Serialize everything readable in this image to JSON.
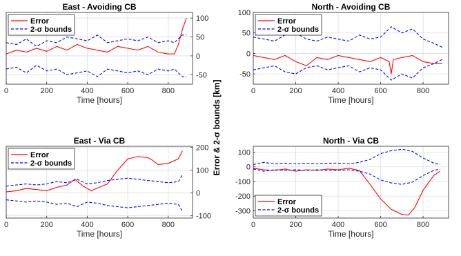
{
  "figure": {
    "ylabel": "Error & 2-σ bounds [km]"
  },
  "colors": {
    "error": "#ff0000",
    "bounds": "#0000ff",
    "grid": "#dddddd",
    "axis": "#262626"
  },
  "chart_data": [
    {
      "type": "line",
      "title": "East - Avoiding CB",
      "xlabel": "Time [hours]",
      "ylabel": "",
      "xlim": [
        0,
        920
      ],
      "ylim": [
        -75,
        115
      ],
      "xticks": [
        0,
        200,
        400,
        600,
        800
      ],
      "yticks": [
        -50,
        0,
        50,
        100
      ],
      "y_axis_side": "right",
      "grid": true,
      "legend_loc": "top-left",
      "series": [
        {
          "name": "Error",
          "style": "solid",
          "color": "#ff0000",
          "x": [
            0,
            50,
            100,
            150,
            200,
            250,
            300,
            350,
            400,
            450,
            500,
            550,
            600,
            650,
            700,
            750,
            800,
            830,
            850,
            870,
            890
          ],
          "y": [
            5,
            15,
            10,
            20,
            12,
            25,
            15,
            30,
            20,
            15,
            10,
            25,
            20,
            15,
            25,
            10,
            5,
            5,
            30,
            70,
            100
          ]
        },
        {
          "name": "2-σ bounds",
          "style": "dashed",
          "color": "#0000ff",
          "x": [
            0,
            50,
            100,
            150,
            200,
            250,
            300,
            350,
            400,
            450,
            500,
            550,
            600,
            650,
            700,
            750,
            800,
            830,
            850,
            870,
            890
          ],
          "y": [
            35,
            30,
            45,
            25,
            40,
            35,
            50,
            45,
            40,
            55,
            35,
            40,
            45,
            40,
            50,
            35,
            40,
            35,
            45,
            55,
            55
          ]
        },
        {
          "name": "",
          "style": "dashed",
          "color": "#0000ff",
          "x": [
            0,
            50,
            100,
            150,
            200,
            250,
            300,
            350,
            400,
            450,
            500,
            550,
            600,
            650,
            700,
            750,
            800,
            830,
            850,
            870,
            890
          ],
          "y": [
            -35,
            -30,
            -45,
            -25,
            -40,
            -35,
            -50,
            -45,
            -40,
            -55,
            -35,
            -40,
            -45,
            -40,
            -50,
            -35,
            -40,
            -35,
            -45,
            -55,
            -55
          ]
        }
      ],
      "legend": [
        "Error",
        "2-σ bounds"
      ]
    },
    {
      "type": "line",
      "title": "North - Avoiding CB",
      "xlabel": "Time [hours]",
      "ylabel": "",
      "xlim": [
        0,
        920
      ],
      "ylim": [
        -75,
        100
      ],
      "xticks": [
        0,
        200,
        400,
        600,
        800
      ],
      "yticks": [
        -50,
        0,
        50,
        100
      ],
      "y_axis_side": "left",
      "grid": true,
      "legend_loc": "top-left",
      "series": [
        {
          "name": "Error",
          "style": "solid",
          "color": "#ff0000",
          "x": [
            0,
            50,
            100,
            150,
            200,
            250,
            300,
            350,
            400,
            450,
            500,
            550,
            600,
            640,
            650,
            660,
            700,
            750,
            800,
            850,
            890
          ],
          "y": [
            -5,
            -10,
            -15,
            -5,
            -20,
            -30,
            -10,
            -15,
            -5,
            -10,
            -15,
            -20,
            -10,
            -20,
            -50,
            -15,
            -10,
            -5,
            -20,
            -25,
            -25
          ]
        },
        {
          "name": "2-σ bounds",
          "style": "dashed",
          "color": "#0000ff",
          "x": [
            0,
            50,
            100,
            150,
            200,
            250,
            300,
            350,
            400,
            450,
            500,
            550,
            600,
            650,
            700,
            750,
            800,
            850,
            890
          ],
          "y": [
            40,
            35,
            30,
            45,
            50,
            35,
            30,
            40,
            35,
            30,
            45,
            35,
            40,
            65,
            50,
            60,
            35,
            25,
            15
          ]
        },
        {
          "name": "",
          "style": "dashed",
          "color": "#0000ff",
          "x": [
            0,
            50,
            100,
            150,
            200,
            250,
            300,
            350,
            400,
            450,
            500,
            550,
            600,
            650,
            700,
            750,
            800,
            850,
            890
          ],
          "y": [
            -40,
            -35,
            -30,
            -45,
            -50,
            -35,
            -30,
            -40,
            -35,
            -30,
            -45,
            -35,
            -40,
            -65,
            -50,
            -60,
            -35,
            -25,
            -15
          ]
        }
      ],
      "legend": [
        "Error",
        "2-σ bounds"
      ]
    },
    {
      "type": "line",
      "title": "East - Via CB",
      "xlabel": "Time [hours]",
      "ylabel": "",
      "xlim": [
        0,
        920
      ],
      "ylim": [
        -110,
        205
      ],
      "xticks": [
        0,
        200,
        400,
        600,
        800
      ],
      "yticks": [
        -100,
        0,
        100,
        200
      ],
      "y_axis_side": "right",
      "grid": true,
      "legend_loc": "top-left",
      "series": [
        {
          "name": "Error",
          "style": "solid",
          "color": "#ff0000",
          "x": [
            0,
            50,
            100,
            150,
            200,
            250,
            300,
            340,
            380,
            420,
            460,
            500,
            550,
            600,
            650,
            700,
            720,
            750,
            800,
            850,
            870
          ],
          "y": [
            5,
            10,
            20,
            15,
            10,
            25,
            35,
            60,
            30,
            10,
            25,
            40,
            100,
            150,
            160,
            155,
            145,
            125,
            130,
            150,
            185
          ]
        },
        {
          "name": "2-σ bounds",
          "style": "dashed",
          "color": "#0000ff",
          "x": [
            0,
            50,
            100,
            150,
            200,
            250,
            300,
            350,
            400,
            450,
            500,
            550,
            600,
            650,
            700,
            750,
            800,
            850,
            870
          ],
          "y": [
            30,
            35,
            40,
            35,
            40,
            50,
            45,
            60,
            40,
            45,
            55,
            60,
            65,
            60,
            55,
            50,
            45,
            50,
            80
          ]
        },
        {
          "name": "",
          "style": "dashed",
          "color": "#0000ff",
          "x": [
            0,
            50,
            100,
            150,
            200,
            250,
            300,
            350,
            400,
            450,
            500,
            550,
            600,
            650,
            700,
            750,
            800,
            850,
            870
          ],
          "y": [
            -30,
            -35,
            -40,
            -35,
            -40,
            -50,
            -45,
            -60,
            -40,
            -45,
            -55,
            -60,
            -65,
            -60,
            -55,
            -50,
            -45,
            -50,
            -80
          ]
        }
      ],
      "legend": [
        "Error",
        "2-σ bounds"
      ]
    },
    {
      "type": "line",
      "title": "North - Via CB",
      "xlabel": "Time [hours]",
      "ylabel": "",
      "xlim": [
        0,
        920
      ],
      "ylim": [
        -350,
        140
      ],
      "xticks": [
        0,
        200,
        400,
        600,
        800
      ],
      "yticks": [
        -300,
        -200,
        -100,
        0,
        100
      ],
      "y_axis_side": "left",
      "grid": true,
      "legend_loc": "bottom-left",
      "series": [
        {
          "name": "Error",
          "style": "solid",
          "color": "#ff0000",
          "x": [
            0,
            50,
            100,
            150,
            200,
            250,
            300,
            350,
            400,
            450,
            500,
            550,
            600,
            650,
            700,
            730,
            760,
            800,
            850,
            880
          ],
          "y": [
            -10,
            -20,
            -25,
            -15,
            -30,
            -20,
            -25,
            -15,
            -20,
            -10,
            -25,
            -120,
            -220,
            -290,
            -325,
            -330,
            -280,
            -160,
            -60,
            -30
          ]
        },
        {
          "name": "2-σ bounds",
          "style": "dashed",
          "color": "#0000ff",
          "x": [
            0,
            50,
            100,
            150,
            200,
            250,
            300,
            350,
            400,
            450,
            500,
            550,
            600,
            650,
            700,
            750,
            800,
            850,
            880
          ],
          "y": [
            15,
            30,
            20,
            25,
            20,
            25,
            20,
            25,
            25,
            20,
            30,
            50,
            90,
            110,
            120,
            105,
            60,
            25,
            15
          ]
        },
        {
          "name": "",
          "style": "dashed",
          "color": "#0000ff",
          "x": [
            0,
            50,
            100,
            150,
            200,
            250,
            300,
            350,
            400,
            450,
            500,
            550,
            600,
            650,
            700,
            750,
            800,
            850,
            880
          ],
          "y": [
            -15,
            -30,
            -20,
            -25,
            -20,
            -25,
            -20,
            -25,
            -25,
            -20,
            -30,
            -50,
            -90,
            -110,
            -120,
            -105,
            -60,
            -25,
            -15
          ]
        }
      ],
      "legend": [
        "Error",
        "2-σ bounds"
      ]
    }
  ]
}
